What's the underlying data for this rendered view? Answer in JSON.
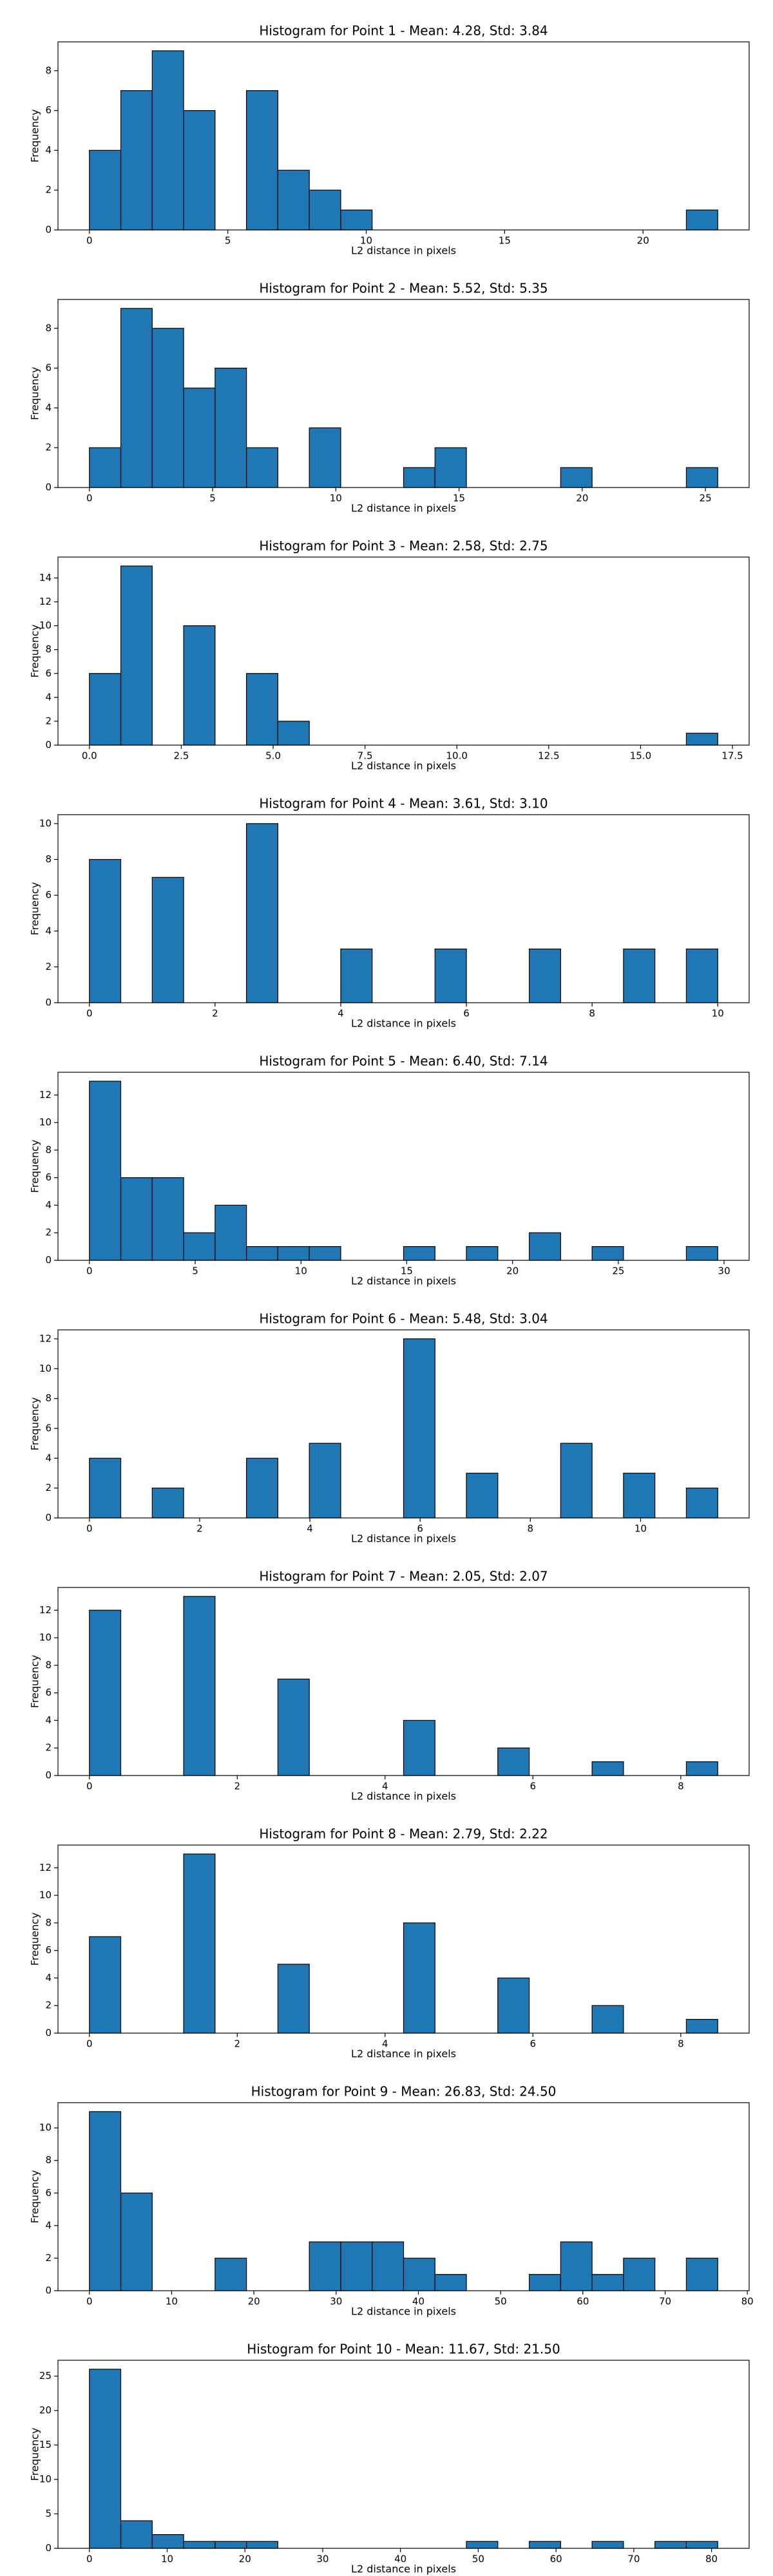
{
  "chart_data": [
    {
      "type": "histogram",
      "title": "Histogram for Point 1 - Mean: 4.28, Std: 3.84",
      "xlabel": "L2 distance in pixels",
      "ylabel": "Frequency",
      "color": "#1f77b4",
      "bins": [
        0,
        1.135,
        2.27,
        3.405,
        4.54,
        5.675,
        6.81,
        7.945,
        9.08,
        10.215,
        11.35,
        12.485,
        13.62,
        14.755,
        15.89,
        17.025,
        18.16,
        19.295,
        20.43,
        21.565,
        22.7
      ],
      "counts": [
        4,
        7,
        9,
        6,
        0,
        7,
        3,
        2,
        1,
        0,
        0,
        0,
        0,
        0,
        0,
        0,
        0,
        0,
        0,
        1
      ],
      "xlim": [
        -1.135,
        23.835
      ],
      "xticks": [
        0,
        5,
        10,
        15,
        20
      ],
      "ylim": [
        0,
        9.45
      ],
      "yticks": [
        0,
        2,
        4,
        6,
        8
      ]
    },
    {
      "type": "histogram",
      "title": "Histogram for Point 2 - Mean: 5.52, Std: 5.35",
      "xlabel": "L2 distance in pixels",
      "ylabel": "Frequency",
      "color": "#1f77b4",
      "bins": [
        0,
        1.275,
        2.55,
        3.825,
        5.1,
        6.375,
        7.65,
        8.925,
        10.2,
        11.475,
        12.75,
        14.025,
        15.3,
        16.575,
        17.85,
        19.125,
        20.4,
        21.675,
        22.95,
        24.225,
        25.5
      ],
      "counts": [
        2,
        9,
        8,
        5,
        6,
        2,
        0,
        3,
        0,
        0,
        1,
        2,
        0,
        0,
        0,
        1,
        0,
        0,
        0,
        1
      ],
      "xlim": [
        -1.275,
        26.775
      ],
      "xticks": [
        0,
        5,
        10,
        15,
        20,
        25
      ],
      "ylim": [
        0,
        9.45
      ],
      "yticks": [
        0,
        2,
        4,
        6,
        8
      ]
    },
    {
      "type": "histogram",
      "title": "Histogram for Point 3 - Mean: 2.58, Std: 2.75",
      "xlabel": "L2 distance in pixels",
      "ylabel": "Frequency",
      "color": "#1f77b4",
      "bins": [
        0,
        0.855,
        1.71,
        2.565,
        3.42,
        4.275,
        5.13,
        5.985,
        6.84,
        7.695,
        8.55,
        9.405,
        10.26,
        11.115,
        11.97,
        12.825,
        13.68,
        14.535,
        15.39,
        16.245,
        17.1
      ],
      "counts": [
        6,
        15,
        0,
        10,
        0,
        6,
        2,
        0,
        0,
        0,
        0,
        0,
        0,
        0,
        0,
        0,
        0,
        0,
        0,
        1
      ],
      "xlim": [
        -0.855,
        17.955
      ],
      "xticks": [
        {
          "value": 0,
          "label": "0.0"
        },
        2.5,
        {
          "value": 5,
          "label": "5.0"
        },
        7.5,
        {
          "value": 10,
          "label": "10.0"
        },
        12.5,
        {
          "value": 15,
          "label": "15.0"
        },
        17.5
      ],
      "ylim": [
        0,
        15.75
      ],
      "yticks": [
        0,
        2,
        4,
        6,
        8,
        10,
        12,
        14
      ]
    },
    {
      "type": "histogram",
      "title": "Histogram for Point 4 - Mean: 3.61, Std: 3.10",
      "xlabel": "L2 distance in pixels",
      "ylabel": "Frequency",
      "color": "#1f77b4",
      "bins": [
        0,
        0.5,
        1,
        1.5,
        2,
        2.5,
        3,
        3.5,
        4,
        4.5,
        5,
        5.5,
        6,
        6.5,
        7,
        7.5,
        8,
        8.5,
        9,
        9.5,
        10
      ],
      "counts": [
        8,
        0,
        7,
        0,
        0,
        10,
        0,
        0,
        3,
        0,
        0,
        3,
        0,
        0,
        3,
        0,
        0,
        3,
        0,
        3
      ],
      "xlim": [
        -0.5,
        10.5
      ],
      "xticks": [
        0,
        2,
        4,
        6,
        8,
        10
      ],
      "ylim": [
        0,
        10.5
      ],
      "yticks": [
        0,
        2,
        4,
        6,
        8,
        10
      ]
    },
    {
      "type": "histogram",
      "title": "Histogram for Point 5 - Mean: 6.40, Std: 7.14",
      "xlabel": "L2 distance in pixels",
      "ylabel": "Frequency",
      "color": "#1f77b4",
      "bins": [
        0,
        1.485,
        2.97,
        4.455,
        5.94,
        7.425,
        8.91,
        10.395,
        11.88,
        13.365,
        14.85,
        16.335,
        17.82,
        19.305,
        20.79,
        22.275,
        23.76,
        25.245,
        26.73,
        28.215,
        29.7
      ],
      "counts": [
        13,
        6,
        6,
        2,
        4,
        1,
        1,
        1,
        0,
        0,
        1,
        0,
        1,
        0,
        2,
        0,
        1,
        0,
        0,
        1
      ],
      "xlim": [
        -1.485,
        31.185
      ],
      "xticks": [
        0,
        5,
        10,
        15,
        20,
        25,
        30
      ],
      "ylim": [
        0,
        13.65
      ],
      "yticks": [
        0,
        2,
        4,
        6,
        8,
        10,
        12
      ]
    },
    {
      "type": "histogram",
      "title": "Histogram for Point 6 - Mean: 5.48, Std: 3.04",
      "xlabel": "L2 distance in pixels",
      "ylabel": "Frequency",
      "color": "#1f77b4",
      "bins": [
        0,
        0.57,
        1.14,
        1.71,
        2.28,
        2.85,
        3.42,
        3.99,
        4.56,
        5.13,
        5.7,
        6.27,
        6.84,
        7.41,
        7.98,
        8.55,
        9.12,
        9.69,
        10.26,
        10.83,
        11.4
      ],
      "counts": [
        4,
        0,
        2,
        0,
        0,
        4,
        0,
        5,
        0,
        0,
        12,
        0,
        3,
        0,
        0,
        5,
        0,
        3,
        0,
        2
      ],
      "xlim": [
        -0.57,
        11.97
      ],
      "xticks": [
        0,
        2,
        4,
        6,
        8,
        10
      ],
      "ylim": [
        0,
        12.6
      ],
      "yticks": [
        0,
        2,
        4,
        6,
        8,
        10,
        12
      ]
    },
    {
      "type": "histogram",
      "title": "Histogram for Point 7 - Mean: 2.05, Std: 2.07",
      "xlabel": "L2 distance in pixels",
      "ylabel": "Frequency",
      "color": "#1f77b4",
      "bins": [
        0,
        0.425,
        0.85,
        1.275,
        1.7,
        2.125,
        2.55,
        2.975,
        3.4,
        3.825,
        4.25,
        4.675,
        5.1,
        5.525,
        5.95,
        6.375,
        6.8,
        7.225,
        7.65,
        8.075,
        8.5
      ],
      "counts": [
        12,
        0,
        0,
        13,
        0,
        0,
        7,
        0,
        0,
        0,
        4,
        0,
        0,
        2,
        0,
        0,
        1,
        0,
        0,
        1
      ],
      "xlim": [
        -0.425,
        8.925
      ],
      "xticks": [
        0,
        2,
        4,
        6,
        8
      ],
      "ylim": [
        0,
        13.65
      ],
      "yticks": [
        0,
        2,
        4,
        6,
        8,
        10,
        12
      ]
    },
    {
      "type": "histogram",
      "title": "Histogram for Point 8 - Mean: 2.79, Std: 2.22",
      "xlabel": "L2 distance in pixels",
      "ylabel": "Frequency",
      "color": "#1f77b4",
      "bins": [
        0,
        0.425,
        0.85,
        1.275,
        1.7,
        2.125,
        2.55,
        2.975,
        3.4,
        3.825,
        4.25,
        4.675,
        5.1,
        5.525,
        5.95,
        6.375,
        6.8,
        7.225,
        7.65,
        8.075,
        8.5
      ],
      "counts": [
        7,
        0,
        0,
        13,
        0,
        0,
        5,
        0,
        0,
        0,
        8,
        0,
        0,
        4,
        0,
        0,
        2,
        0,
        0,
        1
      ],
      "xlim": [
        -0.425,
        8.925
      ],
      "xticks": [
        0,
        2,
        4,
        6,
        8
      ],
      "ylim": [
        0,
        13.65
      ],
      "yticks": [
        0,
        2,
        4,
        6,
        8,
        10,
        12
      ]
    },
    {
      "type": "histogram",
      "title": "Histogram for Point 9 - Mean: 26.83, Std: 24.50",
      "xlabel": "L2 distance in pixels",
      "ylabel": "Frequency",
      "color": "#1f77b4",
      "bins": [
        0,
        3.82,
        7.64,
        11.46,
        15.28,
        19.1,
        22.92,
        26.74,
        30.56,
        34.38,
        38.2,
        42.02,
        45.84,
        49.66,
        53.48,
        57.3,
        61.12,
        64.94,
        68.76,
        72.58,
        76.4
      ],
      "counts": [
        11,
        6,
        0,
        0,
        2,
        0,
        0,
        3,
        3,
        3,
        2,
        1,
        0,
        0,
        1,
        3,
        1,
        2,
        0,
        2
      ],
      "xlim": [
        -3.82,
        80.22
      ],
      "xticks": [
        0,
        10,
        20,
        30,
        40,
        50,
        60,
        70,
        80
      ],
      "ylim": [
        0,
        11.55
      ],
      "yticks": [
        0,
        2,
        4,
        6,
        8,
        10
      ]
    },
    {
      "type": "histogram",
      "title": "Histogram for Point 10 - Mean: 11.67, Std: 21.50",
      "xlabel": "L2 distance in pixels",
      "ylabel": "Frequency",
      "color": "#1f77b4",
      "bins": [
        0,
        4.04,
        8.08,
        12.12,
        16.16,
        20.2,
        24.24,
        28.28,
        32.32,
        36.36,
        40.4,
        44.44,
        48.48,
        52.52,
        56.56,
        60.6,
        64.64,
        68.68,
        72.72,
        76.76,
        80.8
      ],
      "counts": [
        26,
        4,
        2,
        1,
        1,
        1,
        0,
        0,
        0,
        0,
        0,
        0,
        1,
        0,
        1,
        0,
        1,
        0,
        1,
        1
      ],
      "xlim": [
        -4.04,
        84.84
      ],
      "xticks": [
        0,
        10,
        20,
        30,
        40,
        50,
        60,
        70,
        80
      ],
      "ylim": [
        0,
        27.3
      ],
      "yticks": [
        0,
        5,
        10,
        15,
        20,
        25
      ]
    }
  ]
}
